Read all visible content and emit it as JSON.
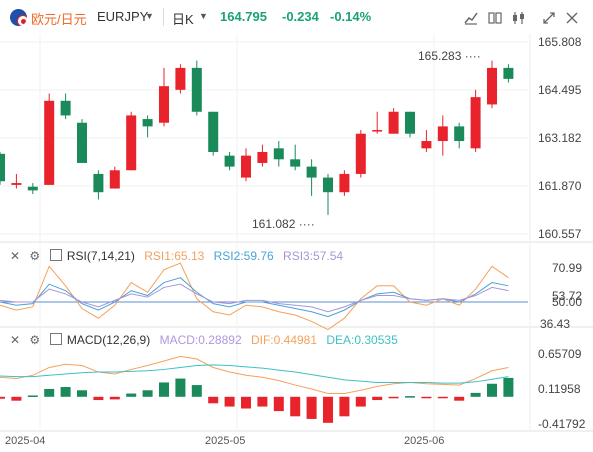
{
  "header": {
    "symbol_cn": "欧元/日元",
    "symbol": "EURJPY",
    "timeframe": "日K",
    "price": "164.795",
    "change": "-0.234",
    "change_pct": "-0.14%"
  },
  "colors": {
    "up": "#e8232b",
    "down": "#1a8a5a",
    "price": "#1aa37a",
    "rsi1": "#f4a15c",
    "rsi2": "#49a3d7",
    "rsi3": "#a995d6",
    "macd": "#b296e0",
    "dif": "#f4a15c",
    "dea": "#3ec1c4"
  },
  "icons": [
    "indicator-icon",
    "layout-icon",
    "tools-icon",
    "expand-icon",
    "close-icon"
  ],
  "main_axis": [
    "165.808",
    "164.495",
    "163.182",
    "161.870",
    "160.557"
  ],
  "high_label": "165.283",
  "low_label": "161.082",
  "rsi_panel": {
    "name": "RSI(7,14,21)",
    "rsi1": "RSI1:65.13",
    "rsi2": "RSI2:59.76",
    "rsi3": "RSI3:57.54",
    "axis": [
      "70.99",
      "53.72",
      "50.00",
      "36.43"
    ]
  },
  "macd_panel": {
    "name": "MACD(12,26,9)",
    "macd": "MACD:0.28892",
    "dif": "DIF:0.44981",
    "dea": "DEA:0.30535",
    "axis": [
      "0.65709",
      "0.11958",
      "-0.41792"
    ]
  },
  "x_axis": [
    "2025-04",
    "2025-05",
    "2025-06"
  ],
  "chart_data": [
    {
      "type": "candlestick",
      "title": "EURJPY 日K",
      "ylim": [
        160.557,
        165.808
      ],
      "candles": [
        {
          "o": 162.75,
          "h": 162.8,
          "l": 161.9,
          "c": 162.0
        },
        {
          "o": 161.9,
          "h": 162.2,
          "l": 161.8,
          "c": 161.95
        },
        {
          "o": 161.85,
          "h": 161.95,
          "l": 161.65,
          "c": 161.75
        },
        {
          "o": 161.9,
          "h": 164.4,
          "l": 161.9,
          "c": 164.2
        },
        {
          "o": 164.2,
          "h": 164.4,
          "l": 163.7,
          "c": 163.8
        },
        {
          "o": 163.6,
          "h": 163.7,
          "l": 162.5,
          "c": 162.5
        },
        {
          "o": 162.2,
          "h": 162.3,
          "l": 161.5,
          "c": 161.7
        },
        {
          "o": 161.8,
          "h": 162.4,
          "l": 161.8,
          "c": 162.3
        },
        {
          "o": 162.3,
          "h": 163.9,
          "l": 162.3,
          "c": 163.8
        },
        {
          "o": 163.7,
          "h": 163.8,
          "l": 163.2,
          "c": 163.5
        },
        {
          "o": 163.6,
          "h": 165.1,
          "l": 163.5,
          "c": 164.6
        },
        {
          "o": 164.5,
          "h": 165.2,
          "l": 164.4,
          "c": 165.1
        },
        {
          "o": 165.1,
          "h": 165.3,
          "l": 163.8,
          "c": 163.9
        },
        {
          "o": 163.9,
          "h": 163.9,
          "l": 162.7,
          "c": 162.8
        },
        {
          "o": 162.7,
          "h": 162.8,
          "l": 162.3,
          "c": 162.4
        },
        {
          "o": 162.1,
          "h": 162.9,
          "l": 162.0,
          "c": 162.7
        },
        {
          "o": 162.5,
          "h": 163.0,
          "l": 162.4,
          "c": 162.8
        },
        {
          "o": 162.9,
          "h": 163.1,
          "l": 162.4,
          "c": 162.6
        },
        {
          "o": 162.6,
          "h": 163.0,
          "l": 162.3,
          "c": 162.4
        },
        {
          "o": 162.4,
          "h": 162.6,
          "l": 161.6,
          "c": 162.1
        },
        {
          "o": 162.1,
          "h": 162.2,
          "l": 161.08,
          "c": 161.7
        },
        {
          "o": 161.7,
          "h": 162.3,
          "l": 161.6,
          "c": 162.2
        },
        {
          "o": 162.2,
          "h": 163.4,
          "l": 162.1,
          "c": 163.3
        },
        {
          "o": 163.4,
          "h": 163.9,
          "l": 163.3,
          "c": 163.4
        },
        {
          "o": 163.3,
          "h": 164.0,
          "l": 163.3,
          "c": 163.9
        },
        {
          "o": 163.9,
          "h": 163.9,
          "l": 163.2,
          "c": 163.3
        },
        {
          "o": 162.9,
          "h": 163.4,
          "l": 162.8,
          "c": 163.1
        },
        {
          "o": 163.1,
          "h": 163.8,
          "l": 162.7,
          "c": 163.5
        },
        {
          "o": 163.5,
          "h": 163.6,
          "l": 162.9,
          "c": 163.1
        },
        {
          "o": 162.9,
          "h": 164.5,
          "l": 162.8,
          "c": 164.3
        },
        {
          "o": 164.1,
          "h": 165.3,
          "l": 164.0,
          "c": 165.1
        },
        {
          "o": 165.1,
          "h": 165.2,
          "l": 164.7,
          "c": 164.8
        }
      ]
    },
    {
      "type": "line",
      "title": "RSI(7,14,21)",
      "ylim": [
        36.43,
        70.99
      ],
      "series": [
        {
          "name": "RSI1",
          "values": [
            48,
            45,
            47,
            72,
            60,
            46,
            40,
            48,
            62,
            56,
            70,
            74,
            52,
            44,
            42,
            48,
            47,
            44,
            42,
            38,
            33,
            40,
            52,
            60,
            60,
            50,
            48,
            52,
            48,
            58,
            72,
            65
          ]
        },
        {
          "name": "RSI2",
          "values": [
            50,
            48,
            49,
            61,
            57,
            49,
            45,
            50,
            57,
            54,
            62,
            65,
            56,
            49,
            47,
            50,
            50,
            48,
            46,
            44,
            41,
            45,
            51,
            55,
            56,
            52,
            51,
            52,
            50,
            55,
            62,
            60
          ]
        },
        {
          "name": "RSI3",
          "values": [
            51,
            50,
            50,
            58,
            55,
            50,
            47,
            51,
            55,
            53,
            59,
            61,
            55,
            50,
            49,
            51,
            51,
            49,
            48,
            47,
            44,
            47,
            51,
            54,
            54,
            52,
            51,
            52,
            51,
            54,
            59,
            57
          ]
        }
      ]
    },
    {
      "type": "bar",
      "title": "MACD(12,26,9)",
      "ylim": [
        -0.41792,
        0.65709
      ],
      "series": [
        {
          "name": "MACD",
          "values": [
            -0.03,
            -0.06,
            0.02,
            0.12,
            0.15,
            0.1,
            -0.05,
            -0.04,
            0.05,
            0.1,
            0.22,
            0.28,
            0.18,
            -0.1,
            -0.15,
            -0.18,
            -0.15,
            -0.22,
            -0.3,
            -0.34,
            -0.4,
            -0.3,
            -0.15,
            -0.05,
            -0.01,
            0.01,
            -0.02,
            -0.02,
            -0.06,
            0.06,
            0.2,
            0.29
          ]
        },
        {
          "name": "DIF",
          "values": [
            0.3,
            0.28,
            0.33,
            0.45,
            0.5,
            0.48,
            0.38,
            0.35,
            0.42,
            0.48,
            0.55,
            0.62,
            0.58,
            0.45,
            0.38,
            0.33,
            0.3,
            0.25,
            0.18,
            0.12,
            0.05,
            0.05,
            0.1,
            0.16,
            0.2,
            0.22,
            0.2,
            0.19,
            0.18,
            0.28,
            0.4,
            0.45
          ]
        },
        {
          "name": "DEA",
          "values": [
            0.32,
            0.31,
            0.31,
            0.33,
            0.35,
            0.37,
            0.38,
            0.38,
            0.39,
            0.4,
            0.42,
            0.45,
            0.48,
            0.49,
            0.48,
            0.46,
            0.44,
            0.41,
            0.38,
            0.34,
            0.3,
            0.26,
            0.24,
            0.22,
            0.22,
            0.22,
            0.22,
            0.21,
            0.21,
            0.23,
            0.27,
            0.31
          ]
        }
      ]
    }
  ]
}
